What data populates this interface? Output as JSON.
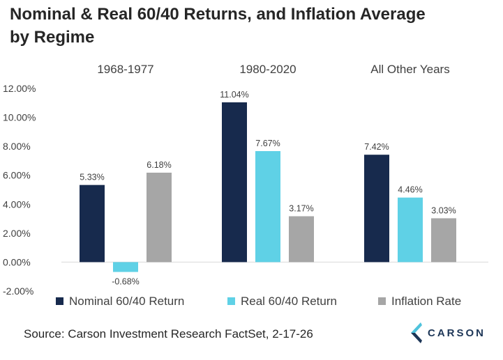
{
  "title_line1": "Nominal & Real 60/40 Returns, and Inflation Average",
  "title_line2": "by Regime",
  "source": "Source: Carson Investment Research FactSet, 2-17-26",
  "logo_text": "CARSON",
  "colors": {
    "nominal": "#172a4d",
    "real": "#5fd1e6",
    "inflation": "#a6a6a6",
    "axis": "#d9d9d9",
    "text": "#404040",
    "logo_dark": "#1d3657",
    "logo_light": "#4fc3dc"
  },
  "chart_data": {
    "type": "bar",
    "categories": [
      "1968-1977",
      "1980-2020",
      "All Other Years"
    ],
    "series": [
      {
        "name": "Nominal 60/40 Return",
        "values": [
          5.33,
          11.04,
          7.42
        ],
        "labels": [
          "5.33%",
          "11.04%",
          "7.42%"
        ]
      },
      {
        "name": "Real 60/40 Return",
        "values": [
          -0.68,
          7.67,
          4.46
        ],
        "labels": [
          "-0.68%",
          "7.67%",
          "4.46%"
        ]
      },
      {
        "name": "Inflation Rate",
        "values": [
          6.18,
          3.17,
          3.03
        ],
        "labels": [
          "6.18%",
          "3.17%",
          "3.03%"
        ]
      }
    ],
    "ylim": [
      -2,
      12
    ],
    "yticks": [
      12,
      10,
      8,
      6,
      4,
      2,
      0,
      -2
    ],
    "ytick_labels": [
      "12.00%",
      "10.00%",
      "8.00%",
      "6.00%",
      "4.00%",
      "2.00%",
      "0.00%",
      "-2.00%"
    ],
    "legend_position": "bottom",
    "grid": false
  }
}
